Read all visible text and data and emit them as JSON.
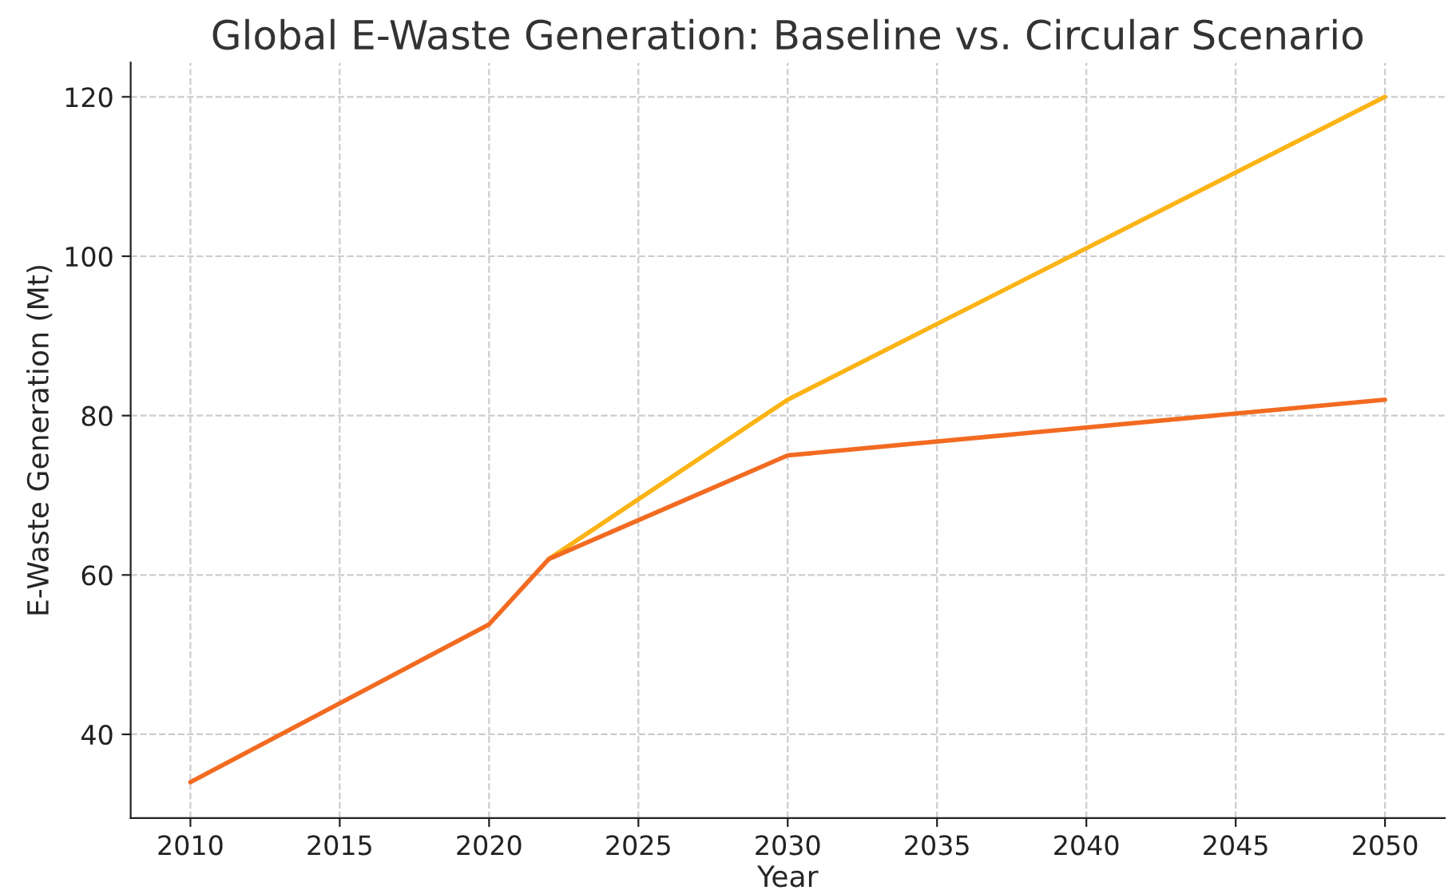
{
  "chart_data": {
    "type": "line",
    "title": "Global E-Waste Generation: Baseline vs. Circular Scenario",
    "xlabel": "Year",
    "ylabel": "E-Waste Generation (Mt)",
    "series": [
      {
        "color": "#fbb416",
        "x": [
          2022,
          2030,
          2050
        ],
        "values": [
          62,
          82,
          120
        ]
      },
      {
        "color": "#f26b21",
        "x": [
          2010,
          2020,
          2022,
          2030,
          2050
        ],
        "values": [
          34,
          53.8,
          62,
          75,
          82
        ]
      }
    ],
    "xlim": [
      2008,
      2052
    ],
    "xticks": [
      2010,
      2015,
      2020,
      2025,
      2030,
      2035,
      2040,
      2045,
      2050
    ],
    "ylim": [
      29.5,
      124.3
    ],
    "yticks": [
      40,
      60,
      80,
      100,
      120
    ],
    "grid": true,
    "line_style": "solid",
    "marker": "none"
  }
}
